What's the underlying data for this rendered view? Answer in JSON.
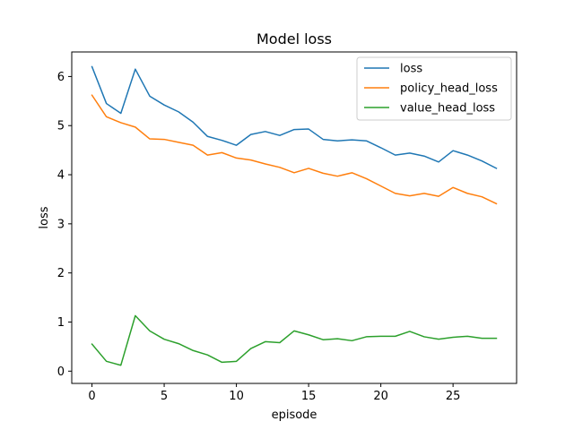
{
  "chart_data": {
    "type": "line",
    "title": "Model loss",
    "xlabel": "episode",
    "ylabel": "loss",
    "xlim": [
      -1.4,
      29.4
    ],
    "ylim": [
      -0.25,
      6.5
    ],
    "grid": false,
    "legend_position": "top-right",
    "x_ticks": [
      0,
      5,
      10,
      15,
      20,
      25
    ],
    "y_ticks": [
      0,
      1,
      2,
      3,
      4,
      5,
      6
    ],
    "x": [
      0,
      1,
      2,
      3,
      4,
      5,
      6,
      7,
      8,
      9,
      10,
      11,
      12,
      13,
      14,
      15,
      16,
      17,
      18,
      19,
      20,
      21,
      22,
      23,
      24,
      25,
      26,
      27,
      28
    ],
    "series": [
      {
        "name": "loss",
        "color": "#1f77b4",
        "values": [
          6.2,
          5.45,
          5.25,
          6.15,
          5.6,
          5.42,
          5.28,
          5.07,
          4.78,
          4.7,
          4.6,
          4.82,
          4.88,
          4.8,
          4.92,
          4.93,
          4.72,
          4.69,
          4.71,
          4.69,
          4.55,
          4.4,
          4.44,
          4.38,
          4.26,
          4.49,
          4.4,
          4.28,
          4.13
        ]
      },
      {
        "name": "policy_head_loss",
        "color": "#ff7f0e",
        "values": [
          5.62,
          5.18,
          5.06,
          4.97,
          4.73,
          4.72,
          4.66,
          4.6,
          4.4,
          4.45,
          4.34,
          4.3,
          4.22,
          4.15,
          4.04,
          4.13,
          4.03,
          3.97,
          4.04,
          3.92,
          3.77,
          3.62,
          3.57,
          3.62,
          3.56,
          3.74,
          3.62,
          3.55,
          3.41
        ]
      },
      {
        "name": "value_head_loss",
        "color": "#2ca02c",
        "values": [
          0.55,
          0.2,
          0.12,
          1.13,
          0.82,
          0.65,
          0.56,
          0.42,
          0.33,
          0.18,
          0.2,
          0.46,
          0.6,
          0.58,
          0.82,
          0.74,
          0.64,
          0.66,
          0.62,
          0.7,
          0.71,
          0.71,
          0.81,
          0.7,
          0.65,
          0.69,
          0.71,
          0.67,
          0.67
        ]
      }
    ]
  }
}
